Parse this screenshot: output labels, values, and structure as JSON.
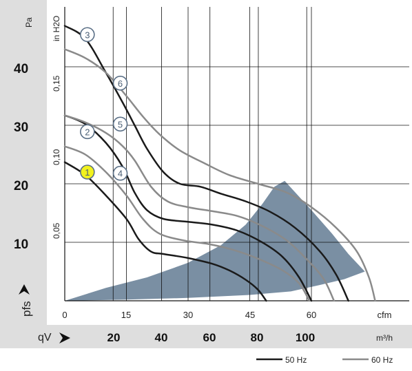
{
  "chart_data": {
    "type": "line",
    "title": "",
    "y_unit_primary": "Pa",
    "y_unit_secondary": "in H2O",
    "y_label": "pfs",
    "x_unit_cfm": "cfm",
    "x_unit_m3h": "m³/h",
    "x_label": "qV",
    "ylim_pa": [
      0,
      47
    ],
    "xlim_cfm": [
      0,
      78
    ],
    "yticks_pa": [
      "10",
      "20",
      "30",
      "40"
    ],
    "yticks_inh2o": [
      "0,05",
      "0,10",
      "0,15"
    ],
    "xticks_cfm": [
      "0",
      "15",
      "30",
      "45",
      "60"
    ],
    "xticks_m3h": [
      "20",
      "40",
      "60",
      "80",
      "100"
    ],
    "grid": true,
    "legend": [
      {
        "label": "50 Hz",
        "color": "#1a1a1a"
      },
      {
        "label": "60 Hz",
        "color": "#8a8a8a"
      }
    ],
    "operating_region": {
      "color": "#7a8fa3",
      "upper": [
        [
          0,
          0
        ],
        [
          10,
          2.2
        ],
        [
          20,
          4
        ],
        [
          30,
          6.5
        ],
        [
          38,
          9.5
        ],
        [
          44,
          13
        ],
        [
          48,
          16.5
        ],
        [
          51,
          19.5
        ],
        [
          53.5,
          20.5
        ]
      ],
      "right": [
        [
          53.5,
          20.5
        ],
        [
          60,
          15.5
        ],
        [
          65,
          11.5
        ],
        [
          69,
          8
        ],
        [
          73,
          5
        ]
      ],
      "lower": [
        [
          73,
          5
        ],
        [
          68,
          3.7
        ],
        [
          62,
          2.7
        ],
        [
          55,
          1.6
        ],
        [
          45,
          1
        ],
        [
          30,
          0.5
        ],
        [
          15,
          0.2
        ],
        [
          0,
          0
        ]
      ]
    },
    "series": [
      {
        "name": "1",
        "group": "50 Hz",
        "color": "#1a1a1a",
        "points": [
          [
            0,
            23.7
          ],
          [
            5,
            21.5
          ],
          [
            10,
            18
          ],
          [
            15,
            14
          ],
          [
            18,
            10.5
          ],
          [
            21,
            8.4
          ],
          [
            24,
            8
          ],
          [
            30,
            7.3
          ],
          [
            36,
            6.3
          ],
          [
            40,
            5.2
          ],
          [
            44,
            3.6
          ],
          [
            47,
            1.9
          ],
          [
            49,
            0
          ]
        ]
      },
      {
        "name": "2",
        "group": "50 Hz",
        "color": "#1a1a1a",
        "points": [
          [
            0,
            31.7
          ],
          [
            5,
            30.2
          ],
          [
            10,
            27
          ],
          [
            14,
            23
          ],
          [
            17,
            18.5
          ],
          [
            20,
            15.5
          ],
          [
            24,
            14
          ],
          [
            30,
            13.5
          ],
          [
            36,
            13
          ],
          [
            42,
            12
          ],
          [
            48,
            10
          ],
          [
            53,
            7.5
          ],
          [
            57,
            4
          ],
          [
            60,
            0
          ]
        ]
      },
      {
        "name": "3",
        "group": "50 Hz",
        "color": "#1a1a1a",
        "points": [
          [
            0,
            47
          ],
          [
            5,
            44.8
          ],
          [
            10,
            39
          ],
          [
            14,
            34
          ],
          [
            17,
            30
          ],
          [
            20,
            26
          ],
          [
            24,
            22
          ],
          [
            28,
            20
          ],
          [
            33,
            19.5
          ],
          [
            38,
            18.3
          ],
          [
            44,
            17
          ],
          [
            50,
            15.2
          ],
          [
            56,
            12.5
          ],
          [
            62,
            8.5
          ],
          [
            66,
            4.5
          ],
          [
            69,
            0
          ]
        ]
      },
      {
        "name": "4",
        "group": "60 Hz",
        "color": "#8a8a8a",
        "points": [
          [
            0,
            26.4
          ],
          [
            5,
            25
          ],
          [
            10,
            22
          ],
          [
            15,
            18
          ],
          [
            19,
            14
          ],
          [
            23,
            11.5
          ],
          [
            29,
            10.3
          ],
          [
            35,
            9.7
          ],
          [
            41,
            8.7
          ],
          [
            47,
            7.2
          ],
          [
            53,
            5.2
          ],
          [
            57,
            3
          ],
          [
            59.5,
            0
          ]
        ]
      },
      {
        "name": "5",
        "group": "60 Hz",
        "color": "#8a8a8a",
        "points": [
          [
            0,
            31.7
          ],
          [
            5,
            30.5
          ],
          [
            10,
            28.7
          ],
          [
            14,
            26.5
          ],
          [
            17,
            24
          ],
          [
            21,
            19.5
          ],
          [
            25,
            17
          ],
          [
            30,
            16
          ],
          [
            36,
            15.3
          ],
          [
            42,
            14.5
          ],
          [
            48,
            12.8
          ],
          [
            54,
            10.3
          ],
          [
            59,
            7
          ],
          [
            63,
            3.7
          ],
          [
            65.5,
            0
          ]
        ]
      },
      {
        "name": "6",
        "group": "60 Hz",
        "color": "#8a8a8a",
        "points": [
          [
            0,
            43
          ],
          [
            5,
            41.5
          ],
          [
            10,
            39
          ],
          [
            15,
            35
          ],
          [
            19,
            31.5
          ],
          [
            23,
            28.5
          ],
          [
            28,
            25.7
          ],
          [
            34,
            23.5
          ],
          [
            40,
            21.5
          ],
          [
            47,
            20
          ],
          [
            54,
            18.5
          ],
          [
            60,
            16
          ],
          [
            66,
            12.5
          ],
          [
            71,
            8.5
          ],
          [
            74,
            4
          ],
          [
            75.5,
            0
          ]
        ]
      }
    ],
    "labeled_points": [
      {
        "name": "1",
        "x": 5.5,
        "y": 22,
        "highlight": true
      },
      {
        "name": "2",
        "x": 5.5,
        "y": 28.9,
        "highlight": false
      },
      {
        "name": "3",
        "x": 5.5,
        "y": 45.5,
        "highlight": false
      },
      {
        "name": "4",
        "x": 13.5,
        "y": 21.8,
        "highlight": false
      },
      {
        "name": "5",
        "x": 13.5,
        "y": 30.2,
        "highlight": false
      },
      {
        "name": "6",
        "x": 13.5,
        "y": 37.2,
        "highlight": false
      }
    ]
  }
}
